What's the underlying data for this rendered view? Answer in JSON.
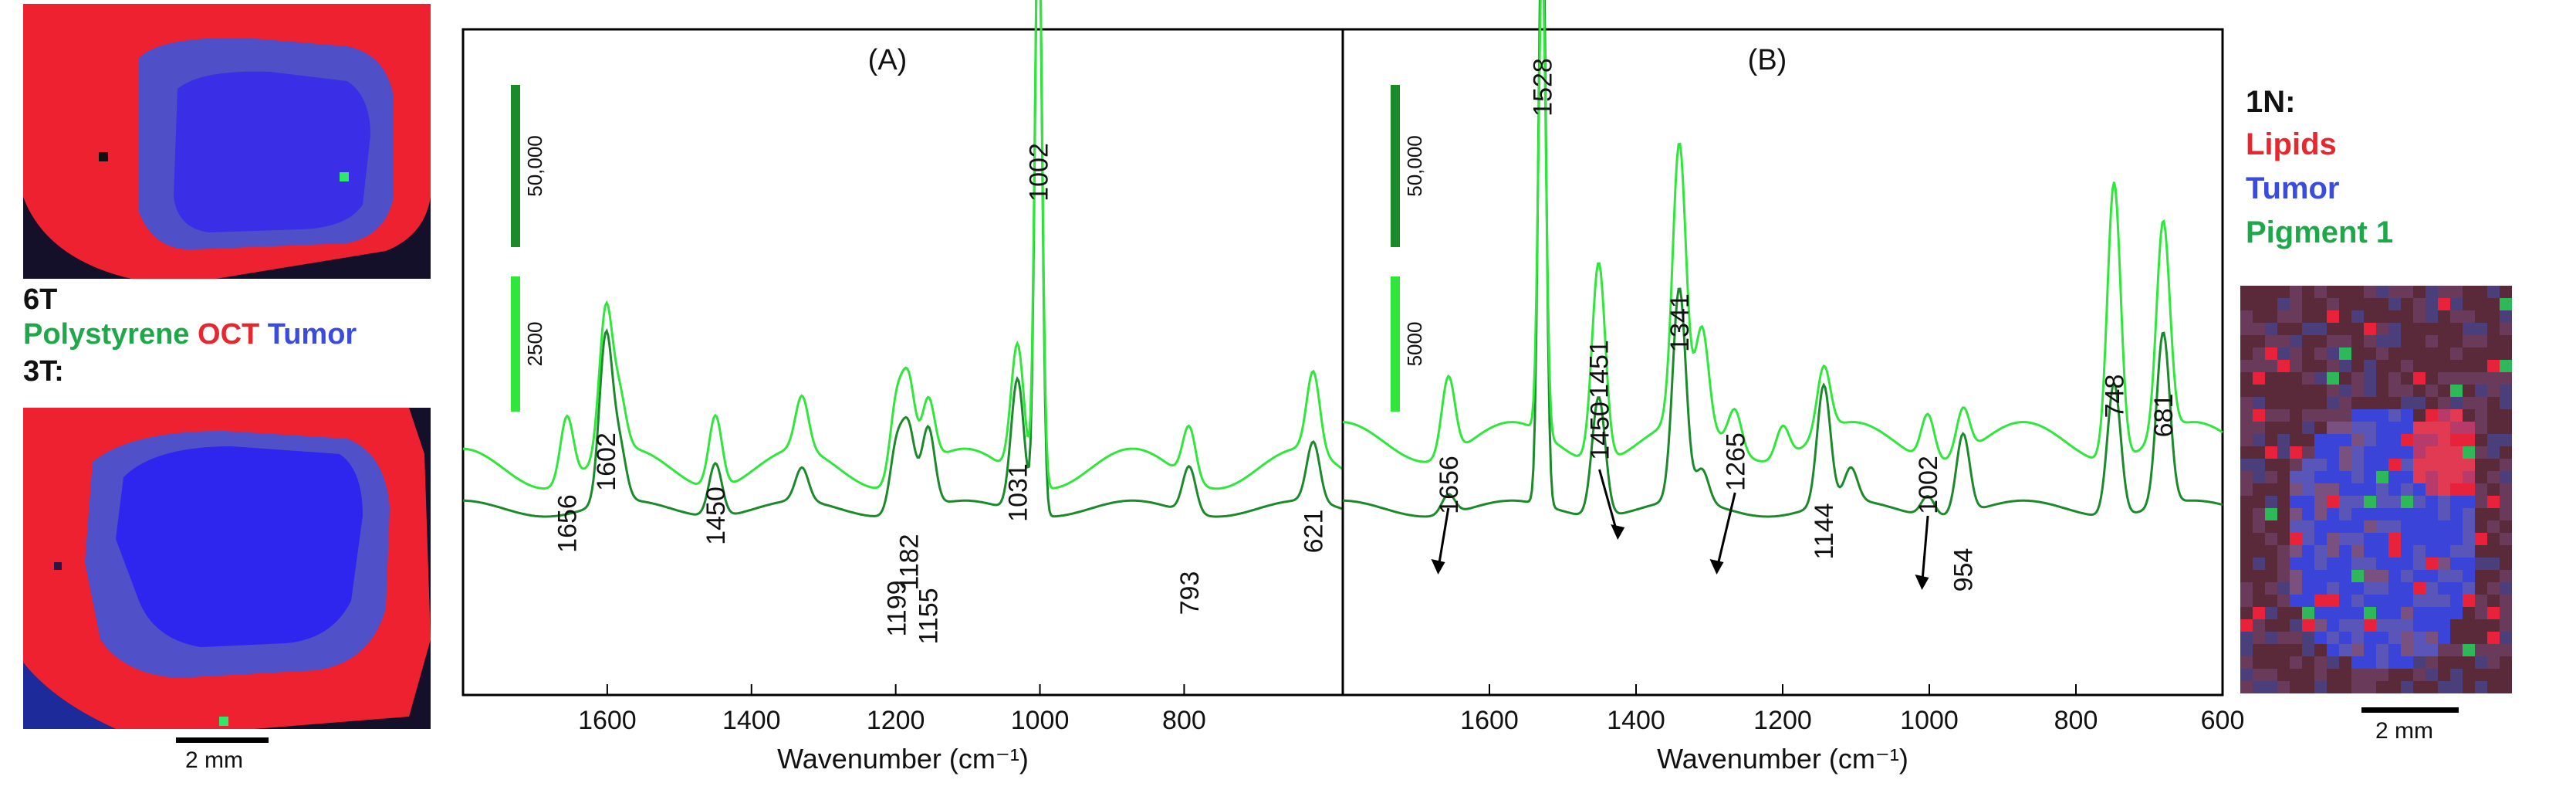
{
  "left_panel": {
    "map_6t_label": "6T",
    "legend_polystyrene": "Polystyrene",
    "legend_oct": "OCT",
    "legend_tumor": "Tumor",
    "map_3t_label": "3T:",
    "scale_label": "2 mm"
  },
  "right_panel": {
    "title": "1N:",
    "legend_lipids": "Lipids",
    "legend_tumor": "Tumor",
    "legend_pigment": "Pigment 1",
    "scale_label": "2 mm"
  },
  "colors": {
    "dark_green": "#1a8a2a",
    "light_green": "#2fe63a",
    "oct_red": "#f2222e",
    "tumor_blue": "#3232f0"
  },
  "chart_data": [
    {
      "panel": "(A)",
      "type": "line",
      "xlabel": "Wavenumber (cm⁻¹)",
      "xlim": [
        1800,
        580
      ],
      "x_ticks": [
        1600,
        1400,
        1200,
        1000,
        800
      ],
      "scale_bars": [
        {
          "label": "50,000",
          "color": "dark"
        },
        {
          "label": "2500",
          "color": "light"
        }
      ],
      "peak_labels": [
        "1656",
        "1602",
        "1450",
        "1199",
        "1182",
        "1155",
        "1031",
        "1002",
        "793",
        "621"
      ],
      "series": [
        {
          "name": "dark",
          "baseline": 0.72,
          "peaks": [
            [
              1602,
              0.25
            ],
            [
              1583,
              0.08
            ],
            [
              1450,
              0.08
            ],
            [
              1330,
              0.05
            ],
            [
              1199,
              0.1
            ],
            [
              1182,
              0.12
            ],
            [
              1155,
              0.12
            ],
            [
              1031,
              0.2
            ],
            [
              1002,
              0.94
            ],
            [
              793,
              0.07
            ],
            [
              621,
              0.09
            ]
          ]
        },
        {
          "name": "light",
          "baseline": 0.66,
          "peaks": [
            [
              1656,
              0.1
            ],
            [
              1602,
              0.22
            ],
            [
              1583,
              0.08
            ],
            [
              1450,
              0.11
            ],
            [
              1330,
              0.08
            ],
            [
              1199,
              0.12
            ],
            [
              1182,
              0.14
            ],
            [
              1155,
              0.1
            ],
            [
              1031,
              0.2
            ],
            [
              1002,
              0.9
            ],
            [
              793,
              0.08
            ],
            [
              621,
              0.12
            ]
          ]
        }
      ]
    },
    {
      "panel": "(B)",
      "type": "line",
      "xlabel": "Wavenumber (cm⁻¹)",
      "xlim": [
        1800,
        600
      ],
      "x_ticks": [
        1600,
        1400,
        1200,
        1000,
        800,
        600
      ],
      "scale_bars": [
        {
          "label": "50,000",
          "color": "dark"
        },
        {
          "label": "5000",
          "color": "light"
        }
      ],
      "peak_labels": [
        "1656",
        "1528",
        "1451",
        "1450",
        "1341",
        "1265",
        "1144",
        "1002",
        "954",
        "748",
        "681"
      ],
      "series": [
        {
          "name": "dark",
          "baseline": 0.72,
          "peaks": [
            [
              1656,
              0.03
            ],
            [
              1528,
              0.94
            ],
            [
              1451,
              0.18
            ],
            [
              1341,
              0.32
            ],
            [
              1310,
              0.05
            ],
            [
              1144,
              0.18
            ],
            [
              1107,
              0.05
            ],
            [
              1002,
              0.03
            ],
            [
              954,
              0.12
            ],
            [
              748,
              0.2
            ],
            [
              681,
              0.26
            ]
          ]
        },
        {
          "name": "light",
          "baseline": 0.62,
          "peaks": [
            [
              1656,
              0.12
            ],
            [
              1528,
              0.72
            ],
            [
              1451,
              0.3
            ],
            [
              1341,
              0.42
            ],
            [
              1310,
              0.15
            ],
            [
              1265,
              0.06
            ],
            [
              1200,
              0.05
            ],
            [
              1144,
              0.1
            ],
            [
              1002,
              0.07
            ],
            [
              954,
              0.07
            ],
            [
              748,
              0.42
            ],
            [
              681,
              0.32
            ]
          ]
        }
      ]
    }
  ]
}
